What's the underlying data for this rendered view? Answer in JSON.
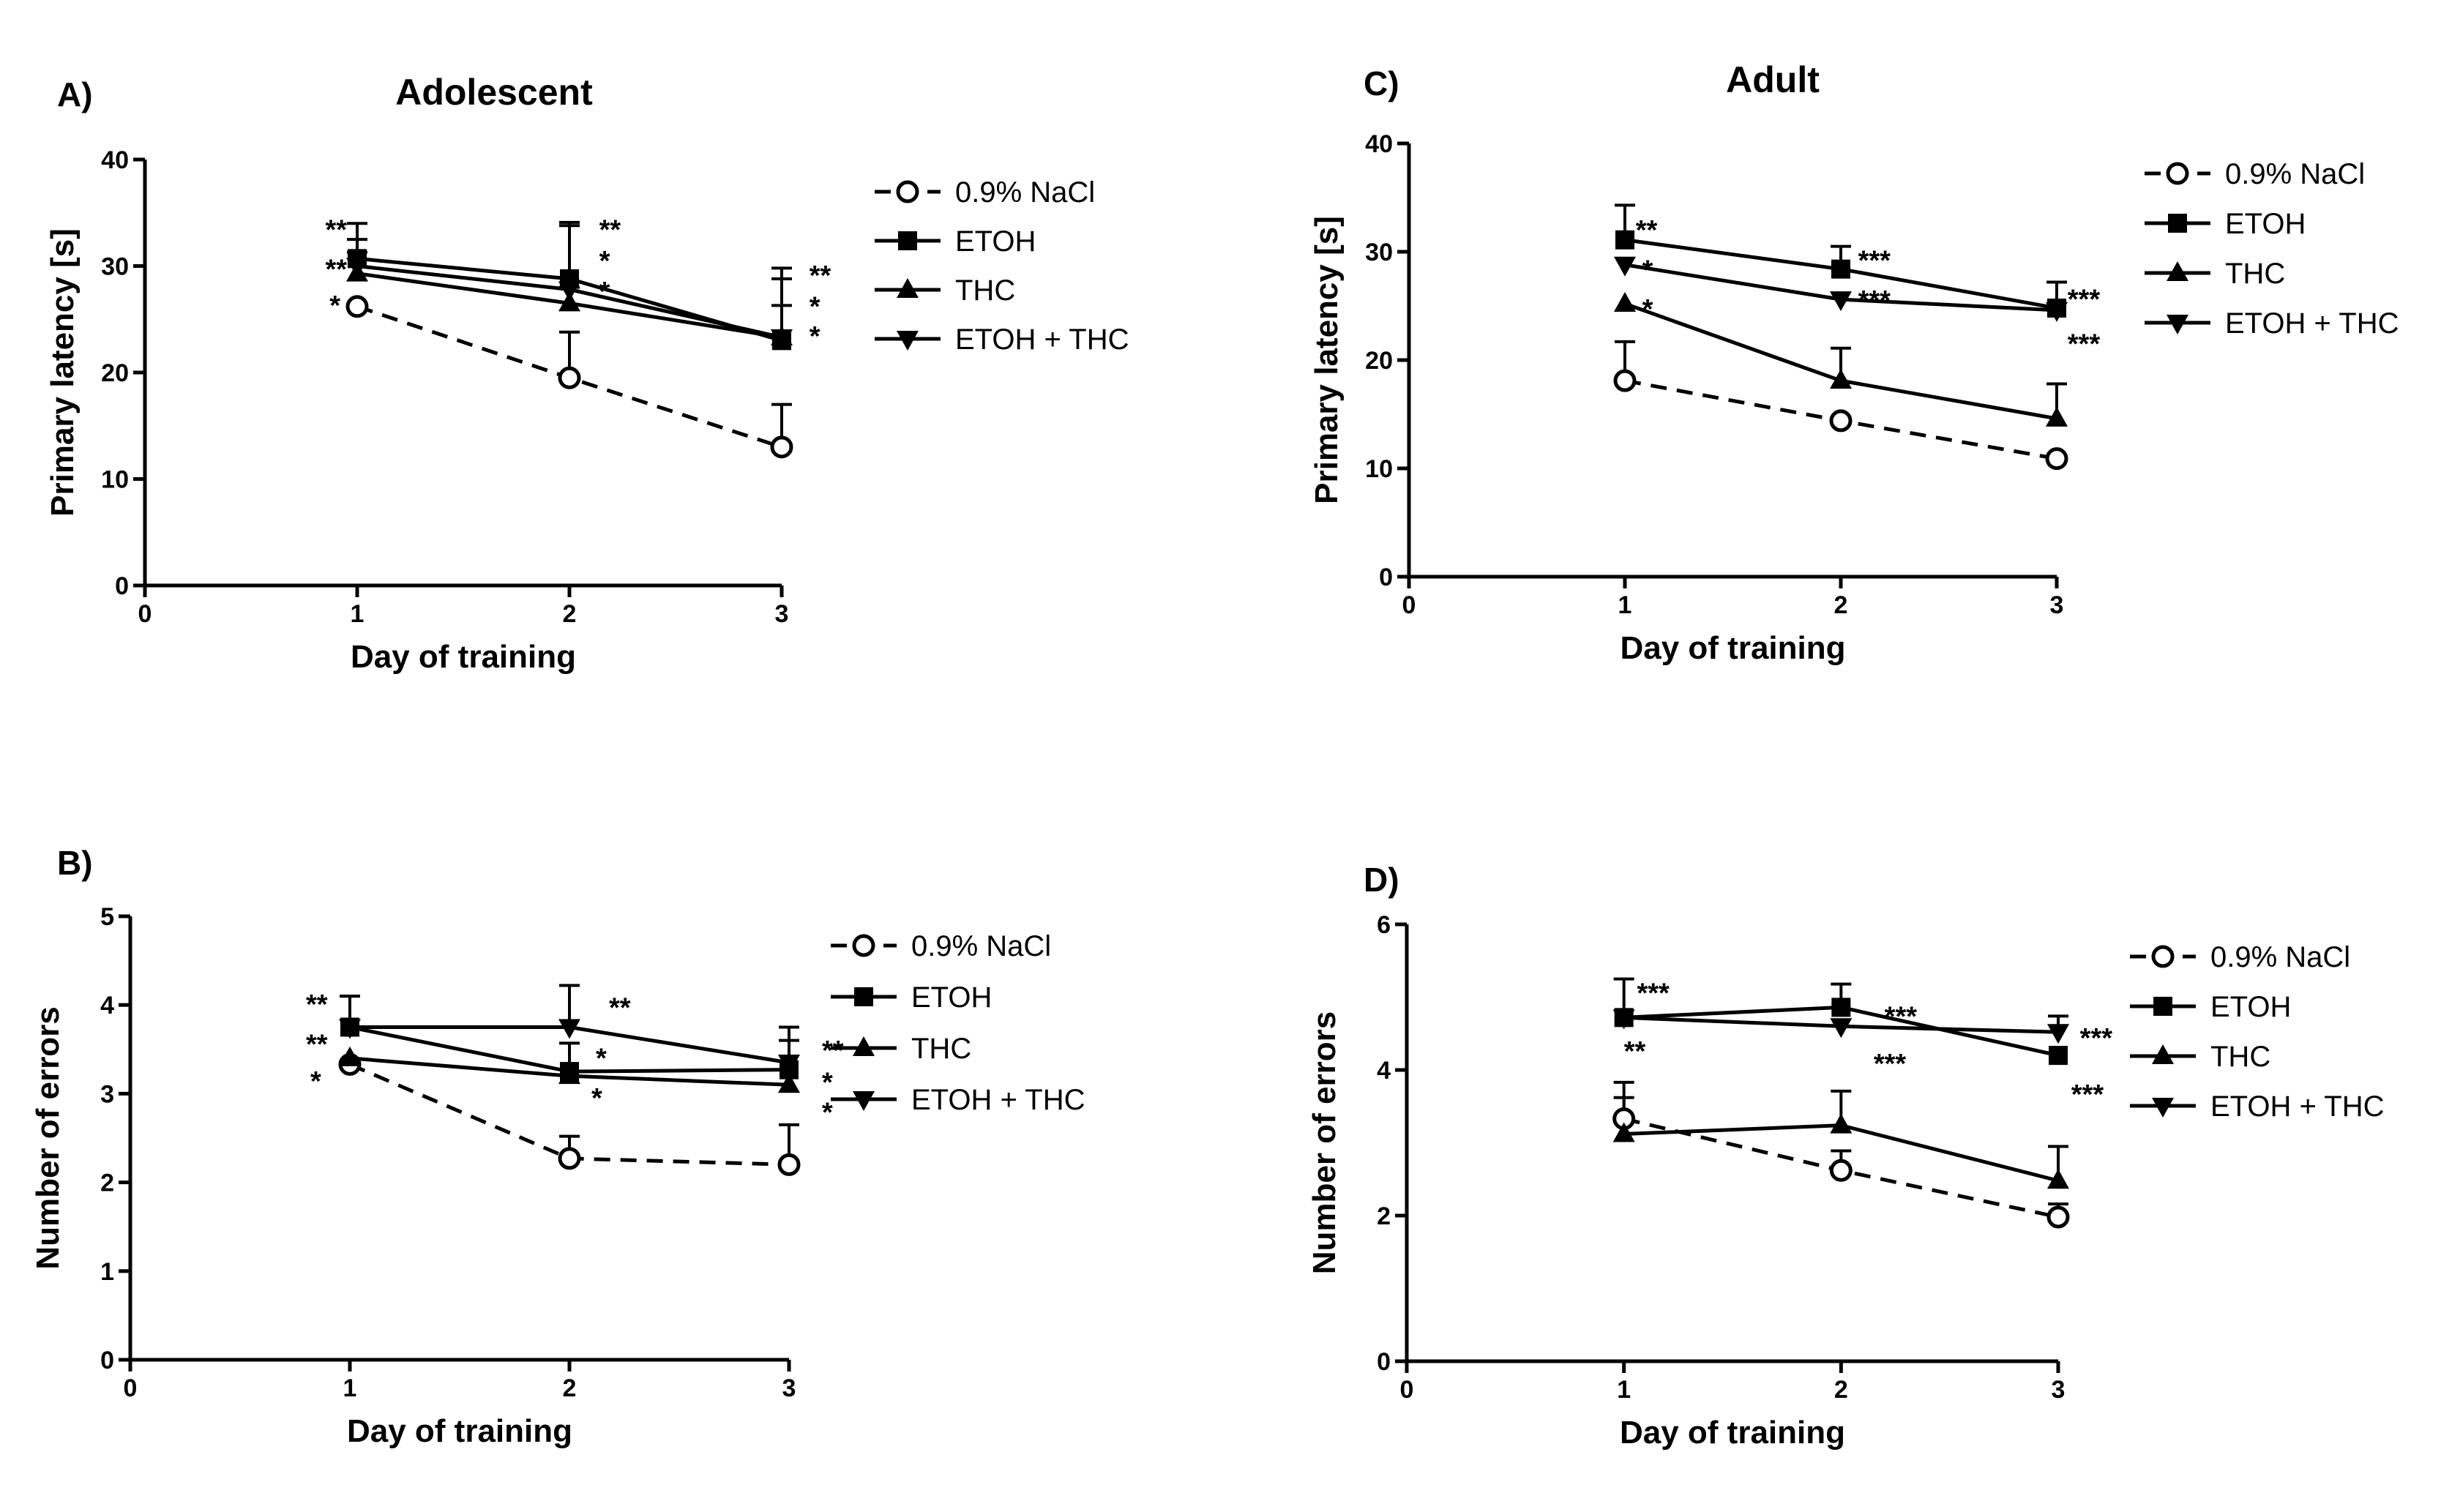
{
  "chart_data": [
    {
      "id": "A",
      "type": "line",
      "panel_letter": "A)",
      "title": "Adolescent",
      "xlabel": "Day of training",
      "ylabel": "Primary latency [s]",
      "xlim": [
        0,
        3
      ],
      "ylim": [
        0,
        40
      ],
      "x_ticks": [
        0,
        1,
        2,
        3
      ],
      "y_ticks": [
        0,
        10,
        20,
        30,
        40
      ],
      "grid": false,
      "legend_position": "right",
      "series": [
        {
          "name": "0.9% NaCl",
          "marker": "open-circle",
          "dashed": true,
          "x": [
            1,
            2,
            3
          ],
          "values": [
            26.2,
            19.5,
            13.0
          ],
          "error_plus": [
            0,
            4.3,
            4.0
          ]
        },
        {
          "name": "ETOH",
          "marker": "square",
          "dashed": false,
          "x": [
            1,
            2,
            3
          ],
          "values": [
            30.7,
            28.8,
            23.0
          ],
          "error_plus": [
            3.3,
            5.3,
            6.8
          ]
        },
        {
          "name": "THC",
          "marker": "triangle-up",
          "dashed": false,
          "x": [
            1,
            2,
            3
          ],
          "values": [
            29.3,
            26.5,
            23.3
          ],
          "error_plus": [
            2.0,
            1.5,
            3.0
          ]
        },
        {
          "name": "ETOH + THC",
          "marker": "triangle-down",
          "dashed": false,
          "x": [
            1,
            2,
            3
          ],
          "values": [
            30.0,
            27.8,
            23.3
          ],
          "error_plus": [
            2.5,
            6.0,
            5.5
          ]
        }
      ],
      "annotations": [
        {
          "text": "**",
          "x": 0.85,
          "y": 33.5
        },
        {
          "text": "**",
          "x": 0.85,
          "y": 29.8
        },
        {
          "text": "*",
          "x": 0.87,
          "y": 26.4
        },
        {
          "text": "**",
          "x": 2.14,
          "y": 33.5
        },
        {
          "text": "*",
          "x": 2.14,
          "y": 30.6
        },
        {
          "text": "*",
          "x": 2.14,
          "y": 27.7
        },
        {
          "text": "**",
          "x": 3.13,
          "y": 29.2
        },
        {
          "text": "*",
          "x": 3.13,
          "y": 26.3
        },
        {
          "text": "*",
          "x": 3.13,
          "y": 23.5
        }
      ]
    },
    {
      "id": "B",
      "type": "line",
      "panel_letter": "B)",
      "title": "",
      "xlabel": "Day of training",
      "ylabel": "Number of errors",
      "xlim": [
        0,
        3
      ],
      "ylim": [
        0,
        5
      ],
      "x_ticks": [
        0,
        1,
        2,
        3
      ],
      "y_ticks": [
        0,
        1,
        2,
        3,
        4,
        5
      ],
      "grid": false,
      "legend_position": "right",
      "series": [
        {
          "name": "0.9% NaCl",
          "marker": "open-circle",
          "dashed": true,
          "x": [
            1,
            2,
            3
          ],
          "values": [
            3.33,
            2.27,
            2.2
          ],
          "error_plus": [
            0,
            0.25,
            0.45
          ]
        },
        {
          "name": "ETOH",
          "marker": "square",
          "dashed": false,
          "x": [
            1,
            2,
            3
          ],
          "values": [
            3.75,
            3.25,
            3.27
          ],
          "error_plus": [
            0.35,
            0.32,
            0.33
          ]
        },
        {
          "name": "THC",
          "marker": "triangle-up",
          "dashed": false,
          "x": [
            1,
            2,
            3
          ],
          "values": [
            3.4,
            3.2,
            3.1
          ],
          "error_plus": [
            0,
            0,
            0
          ]
        },
        {
          "name": "ETOH + THC",
          "marker": "triangle-down",
          "dashed": false,
          "x": [
            1,
            2,
            3
          ],
          "values": [
            3.75,
            3.75,
            3.35
          ],
          "error_plus": [
            0.35,
            0.47,
            0.4
          ]
        }
      ],
      "annotations": [
        {
          "text": "**",
          "x": 0.8,
          "y": 4.02
        },
        {
          "text": "**",
          "x": 0.8,
          "y": 3.57
        },
        {
          "text": "*",
          "x": 0.82,
          "y": 3.15
        },
        {
          "text": "**",
          "x": 2.18,
          "y": 3.98
        },
        {
          "text": "*",
          "x": 2.12,
          "y": 3.41
        },
        {
          "text": "*",
          "x": 2.1,
          "y": 2.96
        },
        {
          "text": "**",
          "x": 3.15,
          "y": 3.5
        },
        {
          "text": "*",
          "x": 3.15,
          "y": 3.14
        },
        {
          "text": "*",
          "x": 3.15,
          "y": 2.8
        }
      ]
    },
    {
      "id": "C",
      "type": "line",
      "panel_letter": "C)",
      "title": "Adult",
      "xlabel": "Day of training",
      "ylabel": "Primary latency [s]",
      "xlim": [
        0,
        3
      ],
      "ylim": [
        0,
        40
      ],
      "x_ticks": [
        0,
        1,
        2,
        3
      ],
      "y_ticks": [
        0,
        10,
        20,
        30,
        40
      ],
      "grid": false,
      "legend_position": "right",
      "series": [
        {
          "name": "0.9% NaCl",
          "marker": "open-circle",
          "dashed": true,
          "x": [
            1,
            2,
            3
          ],
          "values": [
            18.1,
            14.4,
            10.9
          ],
          "error_plus": [
            3.6,
            0,
            0
          ]
        },
        {
          "name": "ETOH",
          "marker": "square",
          "dashed": false,
          "x": [
            1,
            2,
            3
          ],
          "values": [
            31.1,
            28.4,
            24.8
          ],
          "error_plus": [
            3.2,
            2.1,
            2.4
          ]
        },
        {
          "name": "THC",
          "marker": "triangle-up",
          "dashed": false,
          "x": [
            1,
            2,
            3
          ],
          "values": [
            25.2,
            18.1,
            14.6
          ],
          "error_plus": [
            0,
            3.0,
            3.2
          ]
        },
        {
          "name": "ETOH + THC",
          "marker": "triangle-down",
          "dashed": false,
          "x": [
            1,
            2,
            3
          ],
          "values": [
            28.8,
            25.6,
            24.6
          ],
          "error_plus": [
            0,
            0,
            0
          ]
        }
      ],
      "annotations": [
        {
          "text": "**",
          "x": 1.05,
          "y": 32.1
        },
        {
          "text": "*",
          "x": 1.08,
          "y": 28.4
        },
        {
          "text": "*",
          "x": 1.08,
          "y": 24.8
        },
        {
          "text": "***",
          "x": 2.08,
          "y": 29.3
        },
        {
          "text": "***",
          "x": 2.08,
          "y": 25.6
        },
        {
          "text": "***",
          "x": 3.05,
          "y": 25.7
        },
        {
          "text": "***",
          "x": 3.05,
          "y": 21.6
        }
      ]
    },
    {
      "id": "D",
      "type": "line",
      "panel_letter": "D)",
      "title": "",
      "xlabel": "Day of training",
      "ylabel": "Number of errors",
      "xlim": [
        0,
        3
      ],
      "ylim": [
        0,
        6
      ],
      "x_ticks": [
        0,
        1,
        2,
        3
      ],
      "y_ticks": [
        0,
        2,
        4,
        6
      ],
      "grid": false,
      "legend_position": "right",
      "series": [
        {
          "name": "0.9% NaCl",
          "marker": "open-circle",
          "dashed": true,
          "x": [
            1,
            2,
            3
          ],
          "values": [
            3.33,
            2.62,
            1.98
          ],
          "error_plus": [
            0.5,
            0.27,
            0.18
          ]
        },
        {
          "name": "ETOH",
          "marker": "square",
          "dashed": false,
          "x": [
            1,
            2,
            3
          ],
          "values": [
            4.72,
            4.86,
            4.2
          ],
          "error_plus": [
            0.53,
            0.32,
            0
          ]
        },
        {
          "name": "THC",
          "marker": "triangle-up",
          "dashed": false,
          "x": [
            1,
            2,
            3
          ],
          "values": [
            3.12,
            3.24,
            2.48
          ],
          "error_plus": [
            0.5,
            0.47,
            0.47
          ]
        },
        {
          "name": "ETOH + THC",
          "marker": "triangle-down",
          "dashed": false,
          "x": [
            1,
            2,
            3
          ],
          "values": [
            4.72,
            4.6,
            4.52
          ],
          "error_plus": [
            0,
            0,
            0.22
          ]
        }
      ],
      "annotations": [
        {
          "text": "***",
          "x": 1.06,
          "y": 5.07
        },
        {
          "text": "**",
          "x": 1.0,
          "y": 4.27
        },
        {
          "text": "***",
          "x": 2.2,
          "y": 4.75
        },
        {
          "text": "***",
          "x": 2.15,
          "y": 4.1
        },
        {
          "text": "***",
          "x": 3.1,
          "y": 4.45
        },
        {
          "text": "***",
          "x": 3.06,
          "y": 3.68
        }
      ]
    }
  ]
}
